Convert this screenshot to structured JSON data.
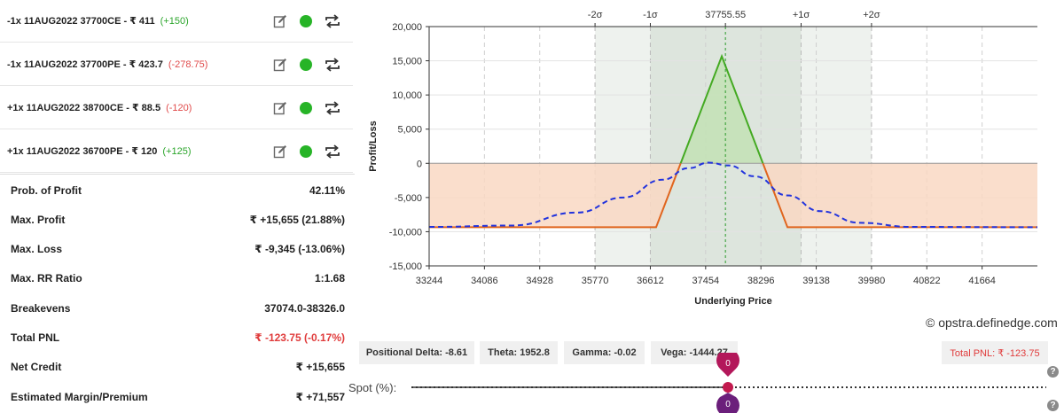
{
  "legs": [
    {
      "text": "-1x  11AUG2022  37700CE  - ₹ 411",
      "change": "(+150)",
      "change_type": "pos"
    },
    {
      "text": "-1x  11AUG2022  37700PE  - ₹ 423.7",
      "change": "(-278.75)",
      "change_type": "neg"
    },
    {
      "text": "+1x  11AUG2022  38700CE  - ₹ 88.5",
      "change": "(-120)",
      "change_type": "neg"
    },
    {
      "text": "+1x  11AUG2022  36700PE  - ₹ 120",
      "change": "(+125)",
      "change_type": "pos"
    }
  ],
  "leg_icons": [
    "edit-icon",
    "status-dot-icon",
    "repeat-icon"
  ],
  "stats": [
    {
      "label": "Prob. of Profit",
      "value": "42.11%"
    },
    {
      "label": "Max. Profit",
      "value": "₹ +15,655 (21.88%)"
    },
    {
      "label": "Max. Loss",
      "value": "₹ -9,345 (-13.06%)"
    },
    {
      "label": "Max. RR Ratio",
      "value": "1:1.68"
    },
    {
      "label": "Breakevens",
      "value": "37074.0-38326.0"
    },
    {
      "label": "Total PNL",
      "value": "₹ -123.75 (-0.17%)",
      "color": "#e03b3b"
    },
    {
      "label": "Net Credit",
      "value": "₹ +15,655"
    },
    {
      "label": "Estimated Margin/Premium",
      "value": "₹ +71,557"
    }
  ],
  "chart_data": {
    "type": "line",
    "xlabel": "Underlying Price",
    "ylabel": "Profit/Loss",
    "xlim": [
      33244,
      42506
    ],
    "ylim": [
      -15000,
      20000
    ],
    "x_ticks": [
      "33244",
      "34086",
      "34928",
      "35770",
      "36612",
      "37454",
      "38296",
      "39138",
      "39980",
      "40822",
      "41664"
    ],
    "y_ticks": [
      "20,000",
      "15,000",
      "10,000",
      "5,000",
      "0",
      "-5,000",
      "-10,000",
      "-15,000"
    ],
    "sigma_labels": [
      {
        "label": "-2σ",
        "x": 35770
      },
      {
        "label": "-1σ",
        "x": 36612
      },
      {
        "label": "37755.55",
        "x": 37755.55
      },
      {
        "label": "+1σ",
        "x": 38908
      },
      {
        "label": "+2σ",
        "x": 39980
      }
    ],
    "series": [
      {
        "values_at_expiry": [
          [
            33244,
            -9345
          ],
          [
            36700,
            -9345
          ],
          [
            37700,
            15655
          ],
          [
            38700,
            -9345
          ],
          [
            42506,
            -9345
          ]
        ],
        "color": "#44aa22"
      },
      {
        "values_today": [
          [
            33244,
            -9300
          ],
          [
            34500,
            -9100
          ],
          [
            35500,
            -7200
          ],
          [
            36200,
            -5000
          ],
          [
            36800,
            -2400
          ],
          [
            37200,
            -700
          ],
          [
            37500,
            100
          ],
          [
            37800,
            -300
          ],
          [
            38200,
            -1900
          ],
          [
            38700,
            -4700
          ],
          [
            39200,
            -7000
          ],
          [
            39800,
            -8700
          ],
          [
            40600,
            -9300
          ],
          [
            42506,
            -9345
          ]
        ],
        "color": "#2233dd"
      }
    ],
    "grid": true,
    "colors": {
      "profit_fill": "#c3e2b5",
      "loss_fill": "#f9d8c3",
      "sigma1_band": "#dde5dd",
      "sigma2_band": "#eef2ee",
      "loss_line": "#e0651e",
      "profit_line": "#44aa22",
      "today_line": "#2233dd"
    }
  },
  "credit": "© opstra.definedge.com",
  "greeks": {
    "delta": "Positional Delta: -8.61",
    "theta": "Theta: 1952.8",
    "gamma": "Gamma: -0.02",
    "vega": "Vega: -1444.27"
  },
  "total_pnl": "Total PNL: ₹ -123.75",
  "help_glyph": "?",
  "spot": {
    "label": "Spot (%):",
    "value": 0,
    "value_label_top": "0",
    "value_label_bottom": "0",
    "range": [
      -50,
      50
    ]
  }
}
